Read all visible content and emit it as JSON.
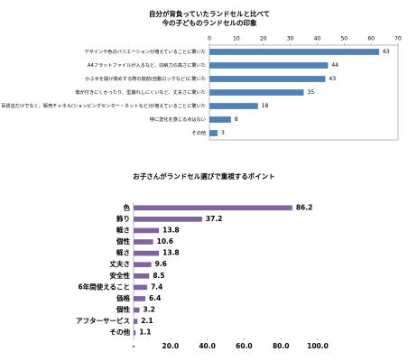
{
  "chart_data": [
    {
      "type": "barh",
      "title": [
        "自分が背負っていたランドセルと比べて",
        "今の子どものランドセルの印象"
      ],
      "categories": [
        "デザインや色のバリエーションが増えていることに驚いた",
        "A4フラットファイルが入るなど、収納力の高さに驚いた",
        "かぶせを開け閉めする際の錠前(自動ロックなど)に驚いた",
        "傷が付きにくかったり、型崩れしにくいなど、丈夫さに驚いた",
        "百貨店だけでなく、販売チャネル(ショッピングセンター・ネットなど)が増えていることに驚いた",
        "特に変化を感じる点はない",
        "その他"
      ],
      "values": [
        63,
        44,
        43,
        35,
        18,
        8,
        3
      ],
      "color": "#4f81bd",
      "xlim": [
        0,
        70
      ],
      "xticks": [
        0,
        10,
        20,
        30,
        40,
        50,
        60,
        70
      ],
      "xaxis_position": "top",
      "grid": false
    },
    {
      "type": "barh",
      "title": [
        "お子さんがランドセル選びで重視するポイント"
      ],
      "categories": [
        "色",
        "飾り",
        "軽さ",
        "個性",
        "軽さ",
        "丈夫さ",
        "安全性",
        "6年間使えること",
        "価格",
        "個性",
        "アフターサービス",
        "その他"
      ],
      "values": [
        86.2,
        37.2,
        13.8,
        10.6,
        13.8,
        9.6,
        8.5,
        7.4,
        6.4,
        3.2,
        2.1,
        1.1
      ],
      "color": "#8064a2",
      "xlim": [
        0,
        100
      ],
      "xticks": [
        {
          "value": 0,
          "label": "-"
        },
        {
          "value": 20,
          "label": "20.0"
        },
        {
          "value": 40,
          "label": "40.0"
        },
        {
          "value": 60,
          "label": "60.0"
        },
        {
          "value": 80,
          "label": "80.0"
        },
        {
          "value": 100,
          "label": "100.0"
        }
      ],
      "xaxis_position": "bottom",
      "grid": false
    }
  ]
}
